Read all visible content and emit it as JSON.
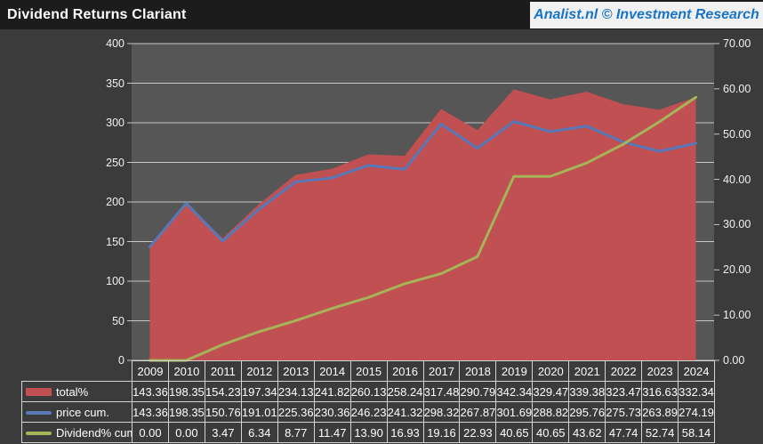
{
  "header": {
    "title": "Dividend Returns Clariant",
    "brand": "Analist.nl © Investment Research"
  },
  "colors": {
    "brand_blue": "#1874c8",
    "header_bg": "#1c1c1c",
    "page_bg": "#3b3b3b",
    "plot_bg": "#565656",
    "gridline": "#c7c7c7",
    "axis_text": "#f2f2f2",
    "table_border": "#d4d4d4"
  },
  "chart_data": {
    "type": "area",
    "title": "Dividend Returns Clariant",
    "grid": true,
    "legend_position": "table-left",
    "value_decimals": 2,
    "categories": [
      "2009",
      "2010",
      "2011",
      "2012",
      "2013",
      "2014",
      "2015",
      "2016",
      "2017",
      "2018",
      "2019",
      "2020",
      "2021",
      "2022",
      "2023",
      "2024"
    ],
    "series": [
      {
        "name": "total%",
        "style": "area",
        "axis": "left",
        "color": "#c05051",
        "values": [
          143.36,
          198.35,
          154.23,
          197.34,
          234.13,
          241.82,
          260.13,
          258.24,
          317.48,
          290.79,
          342.34,
          329.47,
          339.38,
          323.47,
          316.63,
          332.34
        ]
      },
      {
        "name": "price cum.",
        "style": "line",
        "axis": "left",
        "color": "#5878b8",
        "values": [
          143.36,
          198.35,
          150.76,
          191.01,
          225.36,
          230.36,
          246.23,
          241.32,
          298.32,
          267.87,
          301.69,
          288.82,
          295.76,
          275.73,
          263.89,
          274.19
        ]
      },
      {
        "name": "Dividend% cum.",
        "style": "line",
        "axis": "right",
        "color": "#a6b458",
        "values": [
          0.0,
          0.0,
          3.47,
          6.34,
          8.77,
          11.47,
          13.9,
          16.93,
          19.16,
          22.93,
          40.65,
          40.65,
          43.62,
          47.74,
          52.74,
          58.14
        ]
      }
    ],
    "left_axis": {
      "min": 0,
      "max": 400,
      "ticks": [
        "0",
        "50",
        "100",
        "150",
        "200",
        "250",
        "300",
        "350",
        "400"
      ]
    },
    "right_axis": {
      "min": 0,
      "max": 70,
      "ticks": [
        "0.00",
        "10.00",
        "20.00",
        "30.00",
        "40.00",
        "50.00",
        "60.00",
        "70.00"
      ]
    }
  }
}
